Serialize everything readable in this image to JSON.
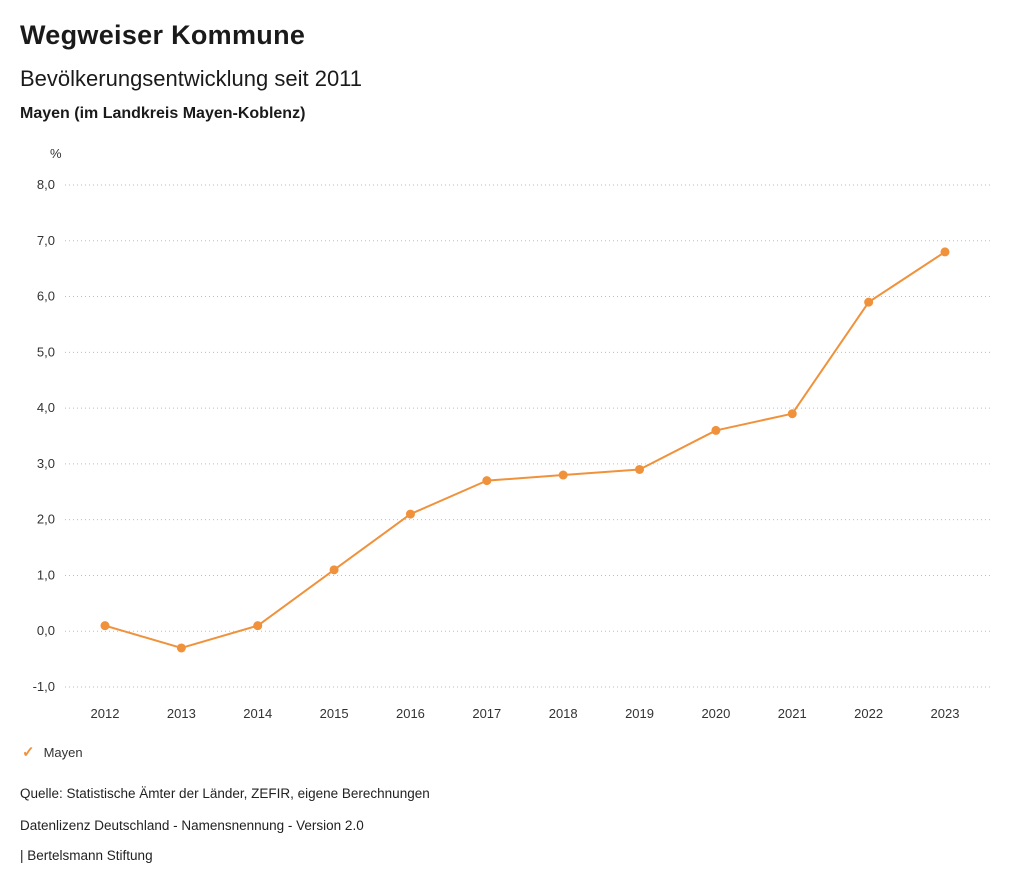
{
  "header": {
    "title": "Wegweiser Kommune",
    "subtitle": "Bevölkerungsentwicklung seit 2011",
    "region": "Mayen (im Landkreis Mayen-Koblenz)"
  },
  "chart_data": {
    "type": "line",
    "title": "Bevölkerungsentwicklung seit 2011",
    "region": "Mayen (im Landkreis Mayen-Koblenz)",
    "unit": "%",
    "x": [
      2012,
      2013,
      2014,
      2015,
      2016,
      2017,
      2018,
      2019,
      2020,
      2021,
      2022,
      2023
    ],
    "series": [
      {
        "name": "Mayen",
        "color": "#F0923B",
        "values": [
          0.1,
          -0.3,
          0.1,
          1.1,
          2.1,
          2.7,
          2.8,
          2.9,
          3.6,
          3.9,
          5.9,
          6.8
        ]
      }
    ],
    "ylim": [
      -1.0,
      8.0
    ],
    "ytick_step": 1.0,
    "decimal_separator": ",",
    "grid": "horizontal-dotted",
    "legend_position": "bottom-left"
  },
  "legend": {
    "items": [
      {
        "label": "Mayen",
        "color": "#F0923B",
        "check_icon": "✓"
      }
    ]
  },
  "footer": {
    "source": "Quelle: Statistische Ämter der Länder, ZEFIR, eigene Berechnungen",
    "license": "Datenlizenz Deutschland - Namensnennung - Version 2.0",
    "attribution": "| Bertelsmann Stiftung"
  },
  "colors": {
    "accent": "#F0923B",
    "grid": "#bdbdbd",
    "axis_text": "#333333"
  }
}
